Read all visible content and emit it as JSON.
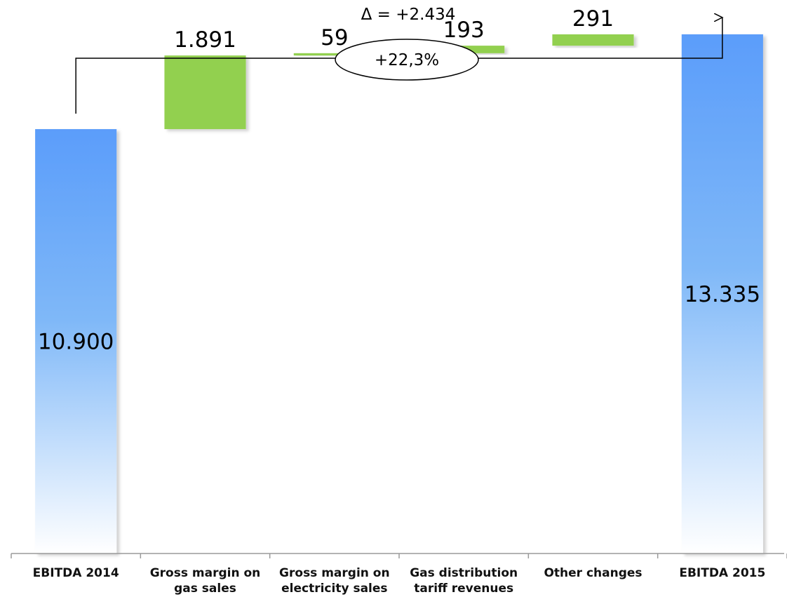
{
  "chart_data": {
    "type": "bar",
    "subtype": "waterfall",
    "title": "",
    "xlabel": "",
    "ylabel": "",
    "ylim": [
      0,
      14000
    ],
    "grid": false,
    "legend": "none",
    "categories": [
      [
        "EBITDA 2014"
      ],
      [
        "Gross margin on",
        "gas sales"
      ],
      [
        "Gross margin on",
        "electricity sales"
      ],
      [
        "Gas distribution",
        "tariff revenues"
      ],
      [
        "Other changes"
      ],
      [
        "EBITDA 2015"
      ]
    ],
    "values": [
      10900,
      1891,
      59,
      193,
      291,
      13335
    ],
    "value_labels": [
      "10.900",
      "1.891",
      "59",
      "193",
      "291",
      "13.335"
    ],
    "bar_kinds": [
      "total",
      "increase",
      "increase",
      "increase",
      "increase",
      "total"
    ],
    "annotation": {
      "delta_label": "Δ = +2.434",
      "delta_value": 2434,
      "percent_label": "+22,3%",
      "percent_value": 22.3
    },
    "colors": {
      "total_top": "#5b9dfa",
      "total_mid": "#7fb8f8",
      "total_bottom": "#ffffff",
      "increase": "#92d050",
      "axis": "#9a9a9a",
      "connector": "#000000"
    }
  }
}
